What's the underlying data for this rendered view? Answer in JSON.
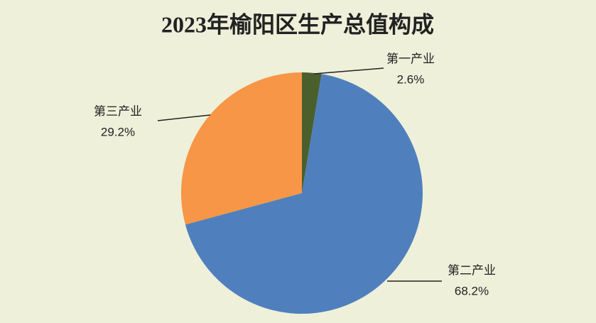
{
  "chart_data": {
    "type": "pie",
    "title": "2023年榆阳区生产总值构成",
    "categories": [
      "第一产业",
      "第二产业",
      "第三产业"
    ],
    "values": [
      2.6,
      68.2,
      29.2
    ],
    "value_labels": [
      "2.6%",
      "68.2%",
      "29.2%"
    ],
    "colors": [
      "#4b5f2c",
      "#4f80bd",
      "#f79646"
    ]
  }
}
